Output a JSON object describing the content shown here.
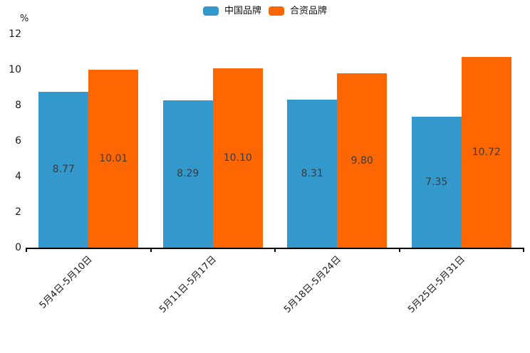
{
  "chart_data": {
    "type": "bar",
    "title": "",
    "xlabel": "",
    "ylabel": "%",
    "ylim": [
      0,
      12
    ],
    "yticks": [
      0,
      2,
      4,
      6,
      8,
      10,
      12
    ],
    "grid": false,
    "legend_position": "top-center",
    "value_labels_inside_bars": true,
    "categories": [
      "5月4日-5月10日",
      "5月11日-5月17日",
      "5月18日-5月24日",
      "5月25日-5月31日"
    ],
    "series": [
      {
        "name": "中国品牌",
        "color": "#3398cc",
        "values": [
          8.77,
          8.29,
          8.31,
          7.35
        ]
      },
      {
        "name": "合资品牌",
        "color": "#fe6602",
        "values": [
          10.01,
          10.1,
          9.8,
          10.72
        ]
      }
    ],
    "colors": {
      "axis": "#000000",
      "tick_text": "#1a1a1a",
      "value_text": "#3b3b3b"
    }
  }
}
